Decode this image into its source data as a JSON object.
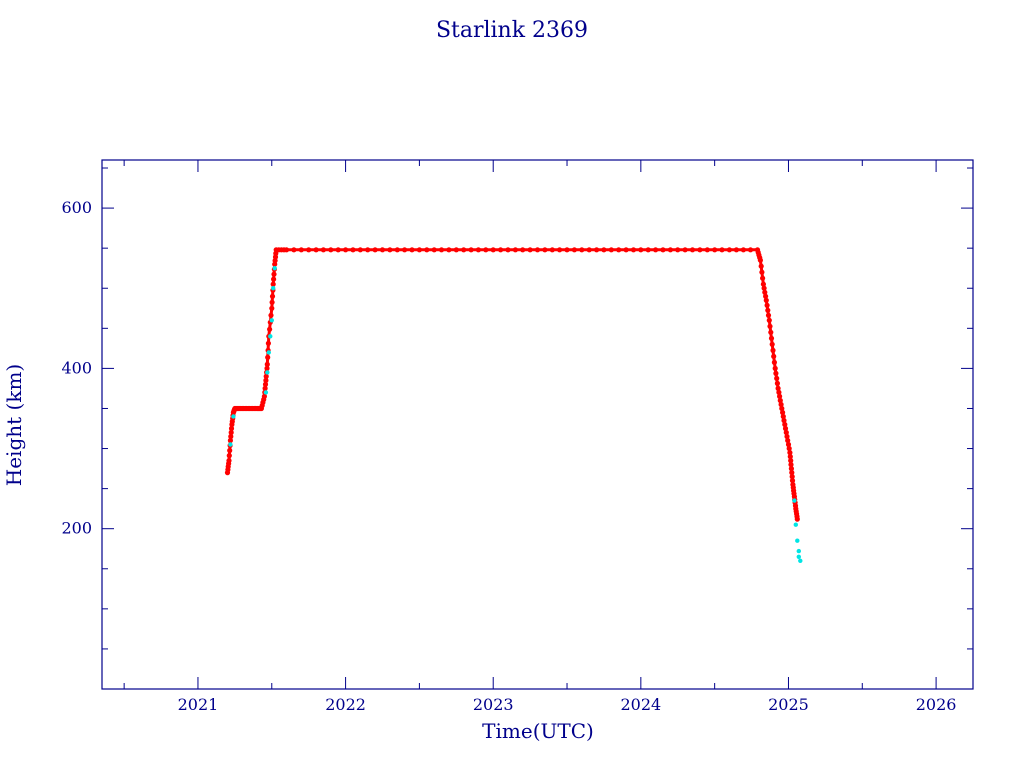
{
  "chart_data": {
    "type": "scatter",
    "title": "Starlink 2369",
    "xlabel": "Time(UTC)",
    "ylabel": "Height (km)",
    "xlim": [
      2020.35,
      2026.25
    ],
    "ylim": [
      0,
      660
    ],
    "x_ticks": [
      2021,
      2022,
      2023,
      2024,
      2025,
      2026
    ],
    "x_tick_labels": [
      "2021",
      "2022",
      "2023",
      "2024",
      "2025",
      "2026"
    ],
    "y_ticks": [
      200,
      400,
      600
    ],
    "y_tick_labels": [
      "200",
      "400",
      "600"
    ],
    "grid": false,
    "colors": {
      "axis": "#00008b",
      "primary": "#ff0000",
      "secondary": "#00e5e5"
    },
    "series": [
      {
        "color": "#ff0000",
        "x": [
          2021.2,
          2021.21,
          2021.22,
          2021.23,
          2021.24,
          2021.25,
          2021.28,
          2021.32,
          2021.36,
          2021.4,
          2021.43,
          2021.45,
          2021.46,
          2021.47,
          2021.48,
          2021.5,
          2021.51,
          2021.52,
          2021.53,
          2021.6,
          2021.8,
          2022.0,
          2022.2,
          2022.4,
          2022.6,
          2022.8,
          2023.0,
          2023.2,
          2023.4,
          2023.6,
          2023.8,
          2024.0,
          2024.2,
          2024.4,
          2024.6,
          2024.79,
          2024.81,
          2024.83,
          2024.85,
          2024.87,
          2024.89,
          2024.91,
          2024.93,
          2024.95,
          2024.97,
          2024.99,
          2025.01,
          2025.02,
          2025.03,
          2025.04,
          2025.05,
          2025.06
        ],
        "y": [
          270,
          285,
          310,
          330,
          345,
          350,
          350,
          350,
          350,
          350,
          350,
          365,
          385,
          405,
          440,
          475,
          505,
          530,
          548,
          548,
          548,
          548,
          548,
          548,
          548,
          548,
          548,
          548,
          548,
          548,
          548,
          548,
          548,
          548,
          548,
          548,
          535,
          505,
          485,
          460,
          430,
          400,
          375,
          355,
          335,
          315,
          295,
          275,
          255,
          240,
          225,
          212
        ]
      },
      {
        "color": "#00e5e5",
        "x": [
          2021.22,
          2021.24,
          2021.46,
          2021.47,
          2021.48,
          2021.49,
          2021.5,
          2021.51,
          2021.52,
          2025.04,
          2025.05,
          2025.06,
          2025.07,
          2025.07,
          2025.08
        ],
        "y": [
          305,
          340,
          370,
          395,
          420,
          440,
          460,
          500,
          525,
          235,
          205,
          185,
          172,
          165,
          160
        ]
      }
    ]
  }
}
